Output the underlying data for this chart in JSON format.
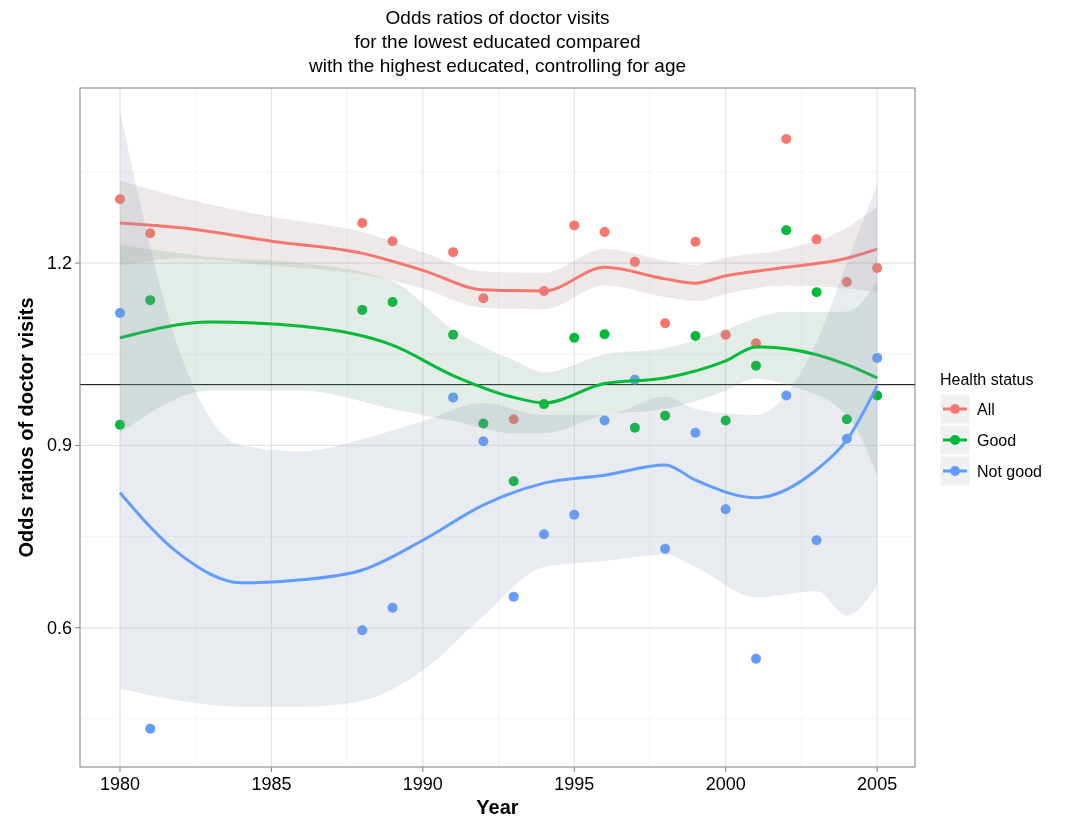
{
  "chart_data": {
    "type": "scatter",
    "title": "Odds ratios of doctor visits\nfor the lowest educated compared\nwith the highest educated, controlling for age",
    "xlabel": "Year",
    "ylabel": "Odds ratios of doctor visits",
    "legend_title": "Health status",
    "legend": "right",
    "grid": true,
    "marker": "circle",
    "xlim": [
      1978.68,
      2006.25
    ],
    "ylim": [
      0.371,
      1.488
    ],
    "xticks": [
      1980,
      1985,
      1990,
      1995,
      2000,
      2005
    ],
    "yticks": [
      0.6,
      0.9,
      1.2
    ],
    "ref_lines": [
      {
        "axis": "y",
        "value": 1.0,
        "color": "#000000"
      }
    ],
    "series": [
      {
        "type": "line",
        "marker": "none",
        "color": "#f8766d",
        "x": [
          1980,
          1982,
          1985,
          1988,
          1990,
          1992,
          1994,
          1996,
          1998,
          1999,
          2000,
          2002,
          2004,
          2005
        ],
        "values": [
          1.266,
          1.258,
          1.236,
          1.216,
          1.188,
          1.156,
          1.154,
          1.193,
          1.174,
          1.167,
          1.179,
          1.193,
          1.208,
          1.223
        ],
        "lower": [
          1.196,
          1.208,
          1.196,
          1.181,
          1.158,
          1.126,
          1.124,
          1.163,
          1.144,
          1.137,
          1.149,
          1.163,
          1.158,
          1.153
        ],
        "upper": [
          1.336,
          1.308,
          1.276,
          1.251,
          1.218,
          1.186,
          1.184,
          1.223,
          1.204,
          1.197,
          1.209,
          1.223,
          1.258,
          1.293
        ]
      },
      {
        "type": "line",
        "marker": "none",
        "color": "#00ba38",
        "x": [
          1980,
          1983,
          1986,
          1989,
          1991,
          1993,
          1994,
          1996,
          1998,
          2000,
          2001,
          2002,
          2004,
          2005
        ],
        "values": [
          1.077,
          1.103,
          1.096,
          1.065,
          1.015,
          0.979,
          0.97,
          1.002,
          1.011,
          1.039,
          1.062,
          1.059,
          1.033,
          1.011
        ],
        "lower": [
          0.92,
          0.99,
          0.99,
          0.96,
          0.94,
          0.92,
          0.92,
          0.95,
          0.96,
          0.99,
          1.01,
          1.0,
          0.95,
          0.85
        ],
        "upper": [
          1.23,
          1.21,
          1.2,
          1.17,
          1.09,
          1.04,
          1.02,
          1.05,
          1.06,
          1.09,
          1.11,
          1.12,
          1.12,
          1.17
        ]
      },
      {
        "type": "line",
        "marker": "none",
        "color": "#619cff",
        "x": [
          1980,
          1982,
          1984,
          1986,
          1988,
          1990,
          1992,
          1994,
          1996,
          1998,
          1999,
          2001,
          2003,
          2004,
          2005
        ],
        "values": [
          0.822,
          0.72,
          0.674,
          0.679,
          0.695,
          0.744,
          0.802,
          0.838,
          0.851,
          0.868,
          0.843,
          0.814,
          0.86,
          0.909,
          0.998
        ],
        "lower": [
          0.5,
          0.48,
          0.47,
          0.47,
          0.48,
          0.53,
          0.62,
          0.7,
          0.71,
          0.72,
          0.7,
          0.65,
          0.66,
          0.62,
          0.67
        ],
        "upper": [
          1.45,
          1.05,
          0.9,
          0.89,
          0.91,
          0.94,
          0.97,
          0.95,
          0.95,
          0.98,
          0.96,
          0.95,
          1.07,
          1.2,
          1.33
        ]
      },
      {
        "name": "All",
        "color": "#f8766d",
        "x": [
          1980,
          1981,
          1988,
          1989,
          1991,
          1992,
          1993,
          1994,
          1995,
          1996,
          1997,
          1998,
          1999,
          2000,
          2001,
          2002,
          2003,
          2004,
          2005
        ],
        "values": [
          1.305,
          1.249,
          1.266,
          1.236,
          1.218,
          1.142,
          0.943,
          1.154,
          1.262,
          1.251,
          1.202,
          1.101,
          1.235,
          1.082,
          1.068,
          1.404,
          1.239,
          1.169,
          1.192
        ]
      },
      {
        "name": "Good",
        "color": "#00ba38",
        "x": [
          1980,
          1981,
          1988,
          1989,
          1991,
          1992,
          1993,
          1994,
          1995,
          1996,
          1997,
          1998,
          1999,
          2000,
          2001,
          2002,
          2003,
          2004,
          2005
        ],
        "values": [
          0.934,
          1.139,
          1.123,
          1.136,
          1.082,
          0.936,
          0.841,
          0.968,
          1.077,
          1.083,
          0.929,
          0.949,
          1.08,
          0.941,
          1.031,
          1.254,
          1.152,
          0.943,
          0.982
        ]
      },
      {
        "name": "Not good",
        "color": "#619cff",
        "x": [
          1980,
          1981,
          1988,
          1989,
          1991,
          1992,
          1993,
          1994,
          1995,
          1996,
          1997,
          1998,
          1999,
          2000,
          2001,
          2002,
          2003,
          2004,
          2005
        ],
        "values": [
          1.118,
          0.434,
          0.596,
          0.633,
          0.979,
          0.907,
          0.651,
          0.754,
          0.786,
          0.941,
          1.008,
          0.73,
          0.921,
          0.795,
          0.549,
          0.982,
          0.744,
          0.911,
          1.044
        ]
      }
    ]
  }
}
